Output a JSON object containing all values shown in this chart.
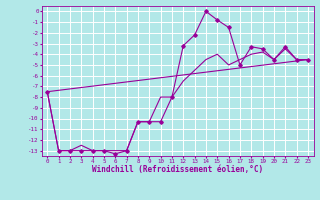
{
  "xlabel": "Windchill (Refroidissement éolien,°C)",
  "background_color": "#b2e8e8",
  "grid_color": "#ffffff",
  "line_color": "#990099",
  "xlim": [
    -0.5,
    23.5
  ],
  "ylim": [
    -13.5,
    0.5
  ],
  "yticks": [
    0,
    -1,
    -2,
    -3,
    -4,
    -5,
    -6,
    -7,
    -8,
    -9,
    -10,
    -11,
    -12,
    -13
  ],
  "xticks": [
    0,
    1,
    2,
    3,
    4,
    5,
    6,
    7,
    8,
    9,
    10,
    11,
    12,
    13,
    14,
    15,
    16,
    17,
    18,
    19,
    20,
    21,
    22,
    23
  ],
  "series1_x": [
    0,
    1,
    2,
    3,
    4,
    5,
    6,
    7,
    8,
    9,
    10,
    11,
    12,
    13,
    14,
    15,
    16,
    17,
    18,
    19,
    20,
    21,
    22,
    23
  ],
  "series1_y": [
    -7.5,
    -13.0,
    -13.0,
    -13.0,
    -13.0,
    -13.0,
    -13.3,
    -13.0,
    -10.3,
    -10.3,
    -10.3,
    -8.0,
    -3.2,
    -2.2,
    0.0,
    -0.8,
    -1.5,
    -5.0,
    -3.3,
    -3.5,
    -4.5,
    -3.3,
    -4.5,
    -4.5
  ],
  "series2_x": [
    0,
    1,
    2,
    3,
    4,
    5,
    6,
    7,
    8,
    9,
    10,
    11,
    12,
    13,
    14,
    15,
    16,
    17,
    18,
    19,
    20,
    21,
    22,
    23
  ],
  "series2_y": [
    -7.5,
    -13.0,
    -13.0,
    -12.5,
    -13.0,
    -13.0,
    -13.0,
    -13.0,
    -10.3,
    -10.3,
    -8.0,
    -8.0,
    -6.5,
    -5.5,
    -4.5,
    -4.0,
    -5.0,
    -4.5,
    -4.0,
    -3.8,
    -4.5,
    -3.5,
    -4.5,
    -4.5
  ],
  "series3_x": [
    0,
    23
  ],
  "series3_y": [
    -7.5,
    -4.5
  ]
}
